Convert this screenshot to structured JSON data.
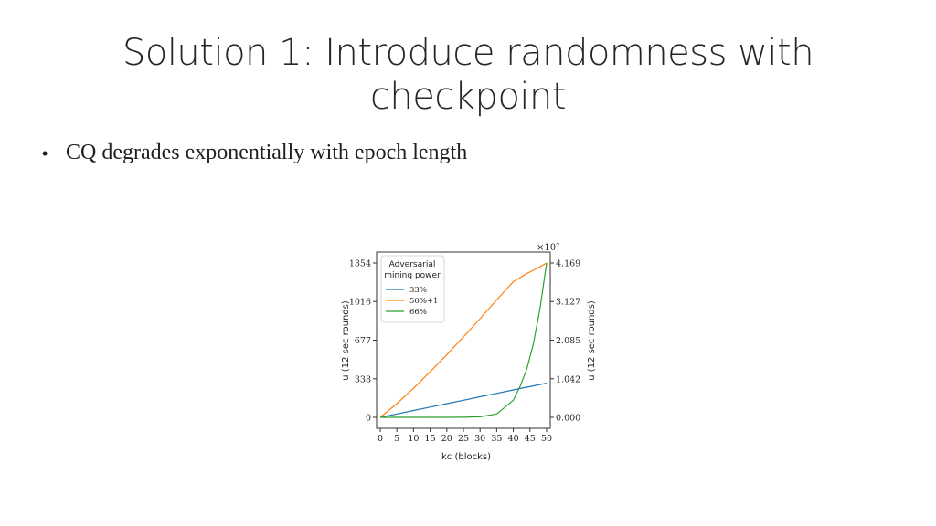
{
  "slide": {
    "title_line1": "Solution 1: Introduce randomness with",
    "title_line2": "checkpoint",
    "bullets": [
      "CQ degrades exponentially with epoch length"
    ]
  },
  "chart_data": {
    "type": "line",
    "xlabel": "kc (blocks)",
    "ylabel": "u (12 sec rounds)",
    "ylabel_right": "u (12 sec rounds)",
    "xlim": [
      0,
      50
    ],
    "ylim": [
      0,
      1354
    ],
    "ylim_right": [
      0,
      4.169
    ],
    "right_axis_multiplier": "×10⁷",
    "x_ticks": [
      0,
      5,
      10,
      15,
      20,
      25,
      30,
      35,
      40,
      45,
      50
    ],
    "y_ticks_left": [
      "0",
      "338",
      "677",
      "1016",
      "1354"
    ],
    "y_ticks_left_values": [
      0,
      338,
      677,
      1016,
      1354
    ],
    "y_ticks_right": [
      "0.000",
      "1.042",
      "2.085",
      "3.127",
      "4.169"
    ],
    "y_ticks_right_values": [
      0,
      1.042,
      2.085,
      3.127,
      4.169
    ],
    "legend": {
      "title_line1": "Adversarial",
      "title_line2": "mining power",
      "placement": "top-left"
    },
    "x": [
      0,
      5,
      10,
      15,
      20,
      25,
      30,
      35,
      40,
      42,
      44,
      46,
      48,
      50
    ],
    "series": [
      {
        "name": "33%",
        "color": "#1f77b4",
        "axis": "left",
        "values": [
          0,
          30,
          60,
          90,
          120,
          150,
          180,
          210,
          240,
          252,
          264,
          276,
          288,
          300
        ]
      },
      {
        "name": "50%+1",
        "color": "#ff7f0e",
        "axis": "left",
        "values": [
          0,
          120,
          255,
          400,
          550,
          705,
          865,
          1030,
          1190,
          1225,
          1260,
          1290,
          1320,
          1354
        ]
      },
      {
        "name": "66%",
        "color": "#2ca02c",
        "axis": "left",
        "values": [
          0,
          0,
          0,
          0,
          0,
          1,
          5,
          30,
          150,
          270,
          420,
          640,
          950,
          1354
        ]
      }
    ]
  }
}
